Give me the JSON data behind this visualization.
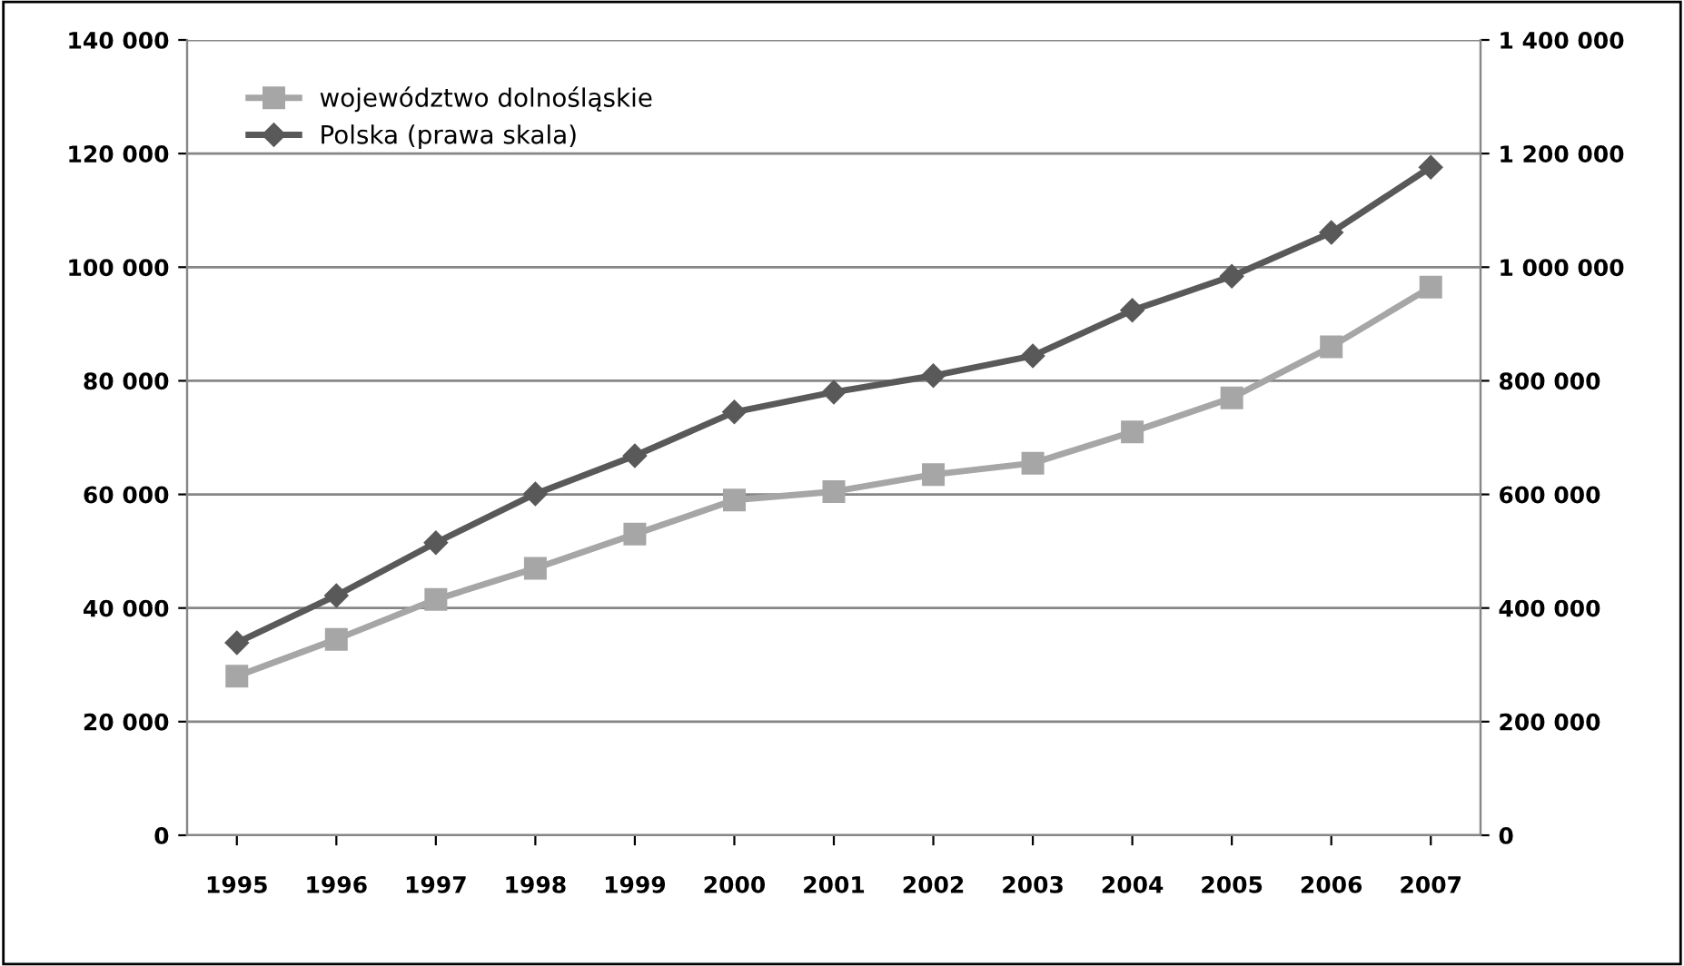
{
  "chart_data": {
    "type": "line",
    "categories": [
      "1995",
      "1996",
      "1997",
      "1998",
      "1999",
      "2000",
      "2001",
      "2002",
      "2003",
      "2004",
      "2005",
      "2006",
      "2007"
    ],
    "series": [
      {
        "name": "województwo dolnośląskie",
        "color": "#a6a6a6",
        "marker": "square",
        "values": [
          28000,
          34500,
          41500,
          47000,
          53000,
          59000,
          60500,
          63500,
          65500,
          71000,
          77000,
          86000,
          96500
        ]
      },
      {
        "name": "Polska (prawa skala)",
        "color": "#595959",
        "marker": "diamond",
        "axis": "y2",
        "values": [
          339000,
          422000,
          515000,
          601000,
          668000,
          745000,
          780000,
          809000,
          844000,
          924000,
          984000,
          1061000,
          1176000
        ]
      }
    ],
    "ylim": [
      0,
      140000
    ],
    "yticks": [
      0,
      {
        "value": 20000,
        "label": "20 000"
      },
      {
        "value": 40000,
        "label": "40 000"
      },
      {
        "value": 60000,
        "label": "60 000"
      },
      {
        "value": 80000,
        "label": "80 000"
      },
      {
        "value": 100000,
        "label": "100 000"
      },
      {
        "value": 120000,
        "label": "120 000"
      },
      {
        "value": 140000,
        "label": "140 000"
      }
    ],
    "y2lim": [
      0,
      1400000
    ],
    "y2ticks": [
      0,
      {
        "value": 200000,
        "label": "200 000"
      },
      {
        "value": 400000,
        "label": "400 000"
      },
      {
        "value": 600000,
        "label": "600 000"
      },
      {
        "value": 800000,
        "label": "800 000"
      },
      {
        "value": 1000000,
        "label": "1 000 000"
      },
      {
        "value": 1200000,
        "label": "1 200 000"
      },
      {
        "value": 1400000,
        "label": "1 400 000"
      }
    ],
    "grid": "y",
    "legend": "top left"
  }
}
